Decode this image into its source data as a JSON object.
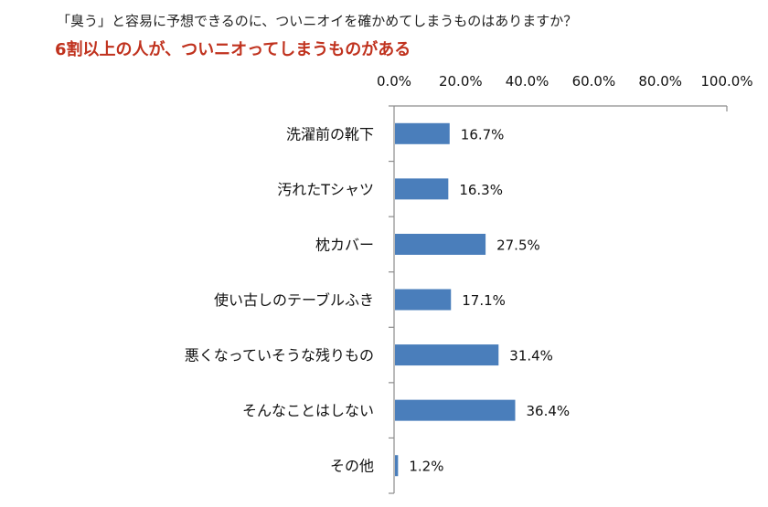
{
  "header": {
    "question": "「臭う」と容易に予想できるのに、ついニオイを確かめてしまうものはありますか？",
    "headline": "6割以上の人が、ついニオってしまうものがある"
  },
  "chart_data": {
    "type": "bar",
    "orientation": "horizontal",
    "title": "「臭う」と容易に予想できるのに、ついニオイを確かめてしまうものはありますか？",
    "subtitle": "6割以上の人が、ついニオってしまうものがある",
    "categories": [
      "洗濯前の靴下",
      "汚れたTシャツ",
      "枕カバー",
      "使い古しのテーブルふき",
      "悪くなっていそうな残りもの",
      "そんなことはしない",
      "その他"
    ],
    "values": [
      16.7,
      16.3,
      27.5,
      17.1,
      31.4,
      36.4,
      1.2
    ],
    "value_labels": [
      "16.7%",
      "16.3%",
      "27.5%",
      "17.1%",
      "31.4%",
      "36.4%",
      "1.2%"
    ],
    "xlim": [
      0,
      100
    ],
    "ticks": [
      0,
      20,
      40,
      60,
      80,
      100
    ],
    "tick_labels": [
      "0.0%",
      "20.0%",
      "40.0%",
      "60.0%",
      "80.0%",
      "100.0%"
    ],
    "axis_position": "top",
    "grid": false,
    "bar_color": "#4a7ebb"
  }
}
